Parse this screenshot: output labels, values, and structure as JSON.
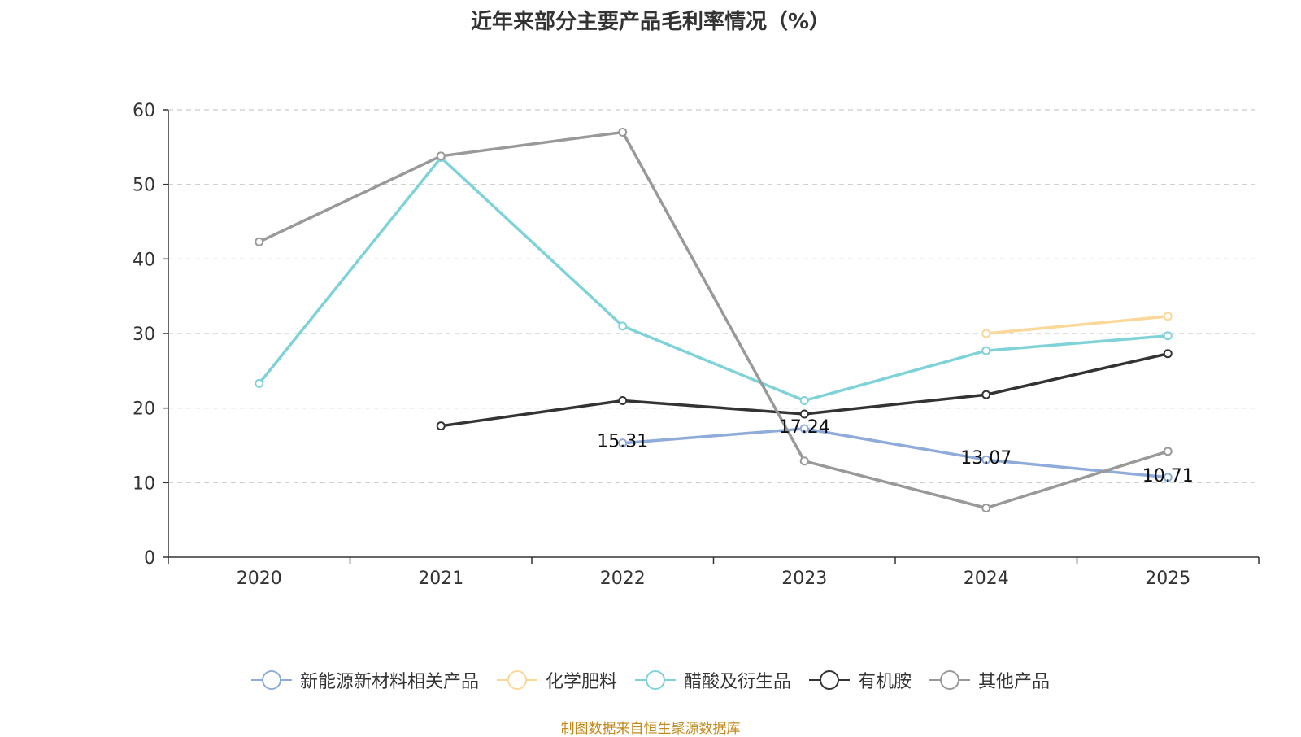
{
  "chart_data": {
    "type": "line",
    "title": "近年来部分主要产品毛利率情况（%）",
    "categories": [
      "2020",
      "2021",
      "2022",
      "2023",
      "2024",
      "2025"
    ],
    "ylim": [
      0,
      60
    ],
    "yticks": [
      0,
      10,
      20,
      30,
      40,
      50,
      60
    ],
    "grid": true,
    "legend_position": "bottom",
    "series": [
      {
        "name": "新能源新材料相关产品",
        "color": "#8fabd9",
        "values": [
          null,
          null,
          15.31,
          17.24,
          13.07,
          10.71
        ],
        "labels": [
          null,
          null,
          "15.31",
          "17.24",
          "13.07",
          "10.71"
        ]
      },
      {
        "name": "化学肥料",
        "color": "#fbd79a",
        "values": [
          null,
          null,
          null,
          null,
          30.0,
          32.3
        ]
      },
      {
        "name": "醋酸及衍生品",
        "color": "#7fd3d8",
        "values": [
          23.3,
          53.6,
          31.0,
          21.0,
          27.7,
          29.7
        ]
      },
      {
        "name": "有机胺",
        "color": "#333333",
        "values": [
          null,
          17.6,
          21.0,
          19.2,
          21.8,
          27.3
        ]
      },
      {
        "name": "其他产品",
        "color": "#999999",
        "values": [
          42.3,
          53.8,
          57.0,
          12.9,
          6.6,
          14.2
        ]
      }
    ]
  },
  "source_note": "制图数据来自恒生聚源数据库"
}
